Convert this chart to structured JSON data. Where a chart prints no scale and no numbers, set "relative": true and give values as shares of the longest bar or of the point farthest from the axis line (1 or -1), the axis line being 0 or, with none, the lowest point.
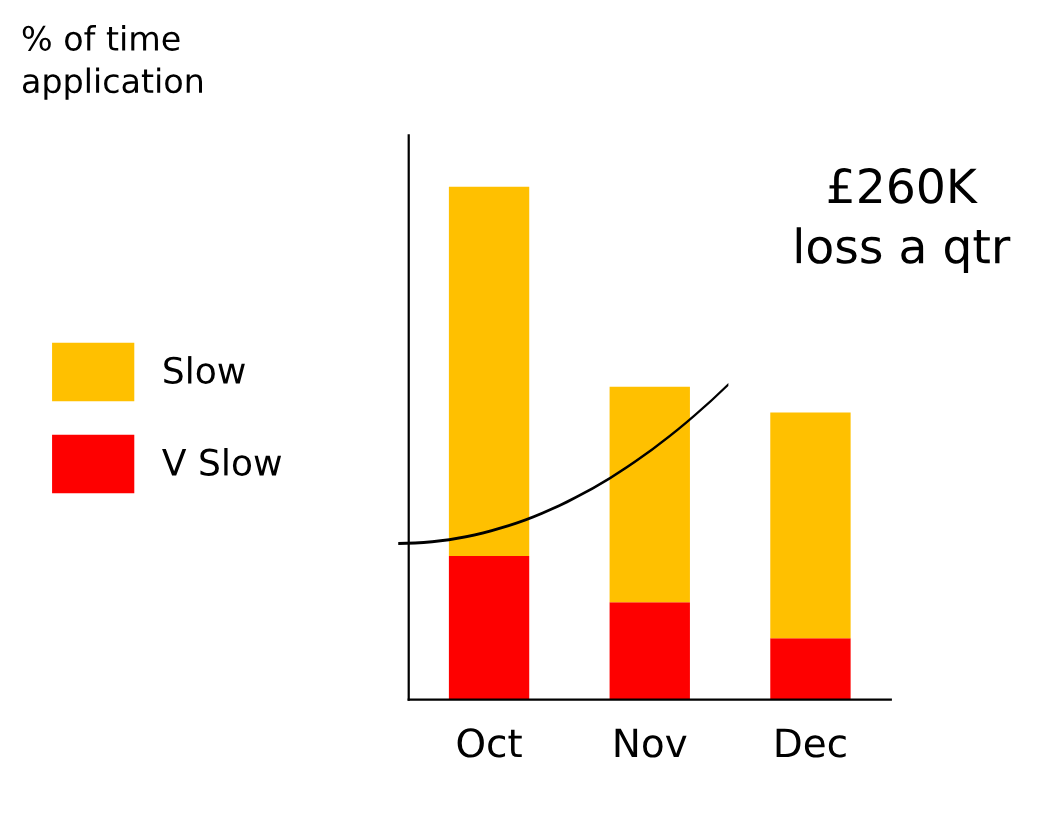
{
  "chart_data": {
    "type": "bar",
    "stacked": true,
    "relative": true,
    "categories": [
      "Oct",
      "Nov",
      "Dec"
    ],
    "series": [
      {
        "name": "V Slow",
        "color": "#fe0000",
        "values": [
          0.28,
          0.19,
          0.12
        ]
      },
      {
        "name": "Slow",
        "color": "#ffc000",
        "values": [
          0.72,
          0.42,
          0.44
        ]
      }
    ],
    "annotations": [
      "% of time\napplication",
      "£260K\nloss a qtr"
    ],
    "legend": "left",
    "tick_labels": "x",
    "grid": false
  }
}
